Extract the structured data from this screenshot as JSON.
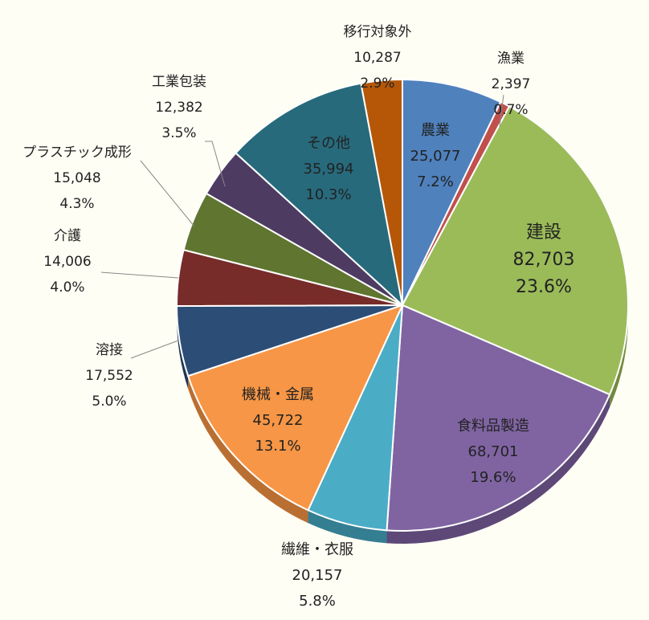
{
  "chart_data": {
    "type": "pie",
    "start_angle_deg": 0,
    "direction": "clockwise",
    "slices": [
      {
        "name": "農業",
        "value": 25077,
        "percent": "7.2%",
        "value_label": "25,077",
        "color": "#4f81bd",
        "side": "#3a6190"
      },
      {
        "name": "漁業",
        "value": 2397,
        "percent": "0.7%",
        "value_label": "2,397",
        "color": "#c0504d",
        "side": "#8e3a38"
      },
      {
        "name": "建設",
        "value": 82703,
        "percent": "23.6%",
        "value_label": "82,703",
        "color": "#9bbb59",
        "side": "#728a40"
      },
      {
        "name": "食料品製造",
        "value": 68701,
        "percent": "19.6%",
        "value_label": "68,701",
        "color": "#8064a2",
        "side": "#5d4878"
      },
      {
        "name": "繊維・衣服",
        "value": 20157,
        "percent": "5.8%",
        "value_label": "20,157",
        "color": "#4bacc6",
        "side": "#347e92"
      },
      {
        "name": "機械・金属",
        "value": 45722,
        "percent": "13.1%",
        "value_label": "45,722",
        "color": "#f79646",
        "side": "#b96f32"
      },
      {
        "name": "溶接",
        "value": 17552,
        "percent": "5.0%",
        "value_label": "17,552",
        "color": "#2c4d75",
        "side": "#1f3654"
      },
      {
        "name": "介護",
        "value": 14006,
        "percent": "4.0%",
        "value_label": "14,006",
        "color": "#772c2a",
        "side": "#541f1d"
      },
      {
        "name": "プラスチック成形",
        "value": 15048,
        "percent": "4.3%",
        "value_label": "15,048",
        "color": "#5f7530",
        "side": "#435322"
      },
      {
        "name": "工業包装",
        "value": 12382,
        "percent": "3.5%",
        "value_label": "12,382",
        "color": "#4d3b62",
        "side": "#372a46"
      },
      {
        "name": "その他",
        "value": 35994,
        "percent": "10.3%",
        "value_label": "35,994",
        "color": "#276a7c",
        "side": "#1c4c59"
      },
      {
        "name": "移行対象外",
        "value": 10287,
        "percent": "2.9%",
        "value_label": "10,287",
        "color": "#b65708",
        "side": "#823e06"
      }
    ]
  }
}
